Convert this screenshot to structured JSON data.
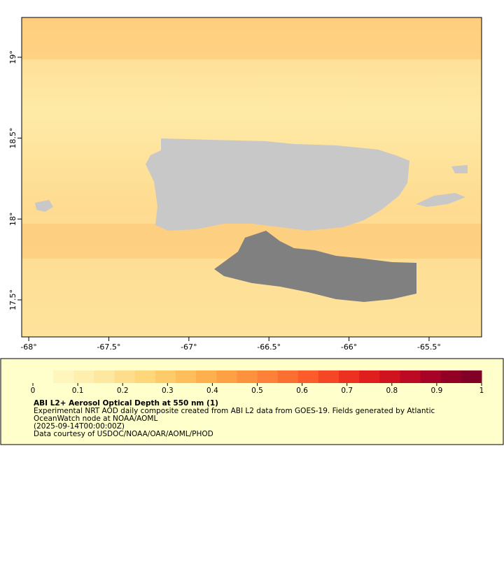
{
  "map": {
    "xlim": [
      -68.044,
      -65.172
    ],
    "ylim": [
      17.271,
      19.246
    ],
    "xticks": [
      {
        "value": -68,
        "label": "-68°"
      },
      {
        "value": -67.5,
        "label": "-67.5°"
      },
      {
        "value": -67,
        "label": "-67°"
      },
      {
        "value": -66.5,
        "label": "-66.5°"
      },
      {
        "value": -66,
        "label": "-66°"
      },
      {
        "value": -65.5,
        "label": "-65.5°"
      }
    ],
    "yticks": [
      {
        "value": 17.5,
        "label": "17.5°"
      },
      {
        "value": 18,
        "label": "18°"
      },
      {
        "value": 18.5,
        "label": "18.5°"
      },
      {
        "value": 19,
        "label": "19°"
      }
    ]
  },
  "legend": {
    "colorbar_lim": [
      0,
      1
    ],
    "colorbar_ticks": [
      0,
      0.1,
      0.2,
      0.3,
      0.4,
      0.5,
      0.6,
      0.7,
      0.8,
      0.9,
      1
    ],
    "colors": [
      "#ffffcc",
      "#fff6bd",
      "#ffefae",
      "#fee79f",
      "#fede8c",
      "#fed77a",
      "#fecb6a",
      "#febe5c",
      "#feb04e",
      "#fea145",
      "#fd923e",
      "#fd8138",
      "#fc6f32",
      "#fc5b2c",
      "#f54626",
      "#ec3121",
      "#e01e1d",
      "#d0141f",
      "#bd0a24",
      "#a60326",
      "#920026",
      "#800026"
    ],
    "title": "ABI L2+ Aerosol Optical Depth at 550 nm (1)",
    "lines": [
      "Experimental NRT AOD daily composite created from ABI L2 data from GOES-19. Fields generated by Atlantic",
      "OceanWatch node at NOAA/AOML",
      "(2025-09-14T00:00:00Z)",
      "Data courtesy of USDOC/NOAA/OAR/AOML/PHOD"
    ]
  }
}
